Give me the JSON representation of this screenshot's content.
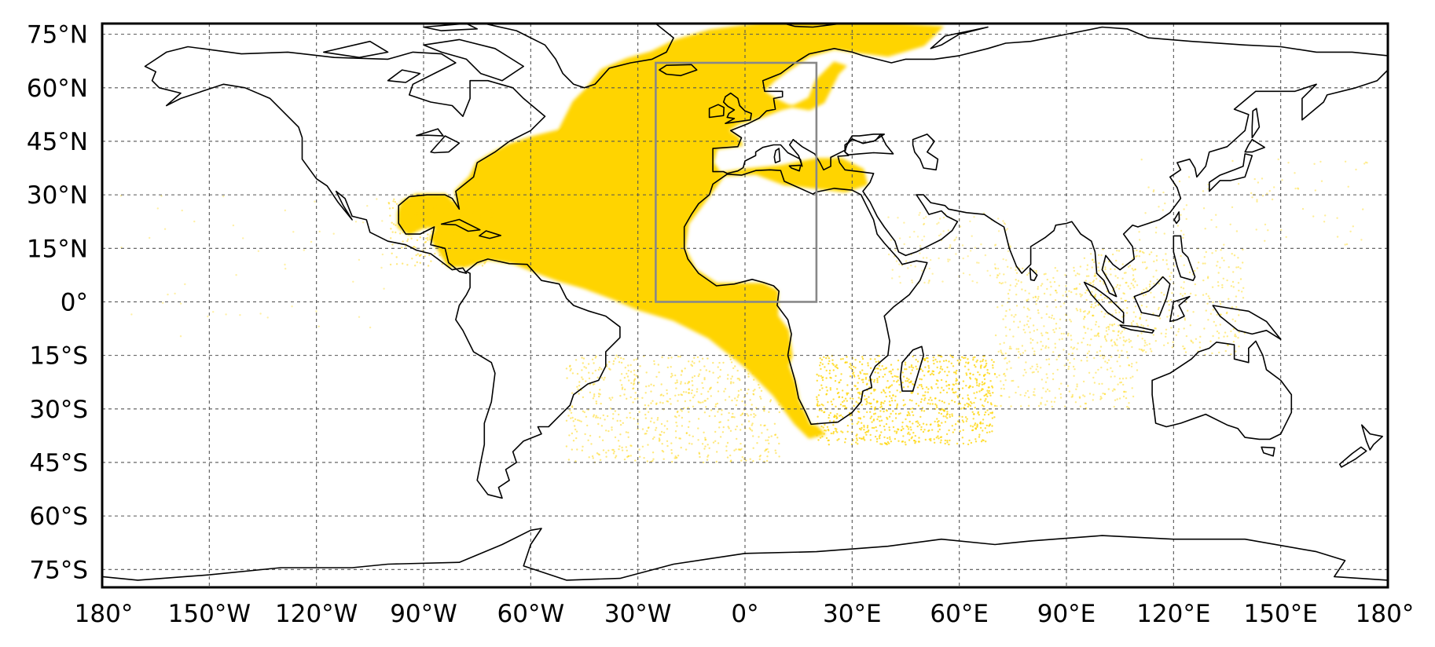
{
  "map": {
    "projection": "plate-carree",
    "extent": {
      "lon": [
        -180,
        180
      ],
      "lat": [
        -80,
        78
      ]
    },
    "grid": true,
    "colors": {
      "frame": "#000000",
      "coastline": "#000000",
      "gridline": "#555555",
      "density": "#FFD400",
      "region_box": "#888888"
    },
    "lat_ticks": [
      {
        "value": 75,
        "label": "75°N"
      },
      {
        "value": 60,
        "label": "60°N"
      },
      {
        "value": 45,
        "label": "45°N"
      },
      {
        "value": 30,
        "label": "30°N"
      },
      {
        "value": 15,
        "label": "15°N"
      },
      {
        "value": 0,
        "label": "0°"
      },
      {
        "value": -15,
        "label": "15°S"
      },
      {
        "value": -30,
        "label": "30°S"
      },
      {
        "value": -45,
        "label": "45°S"
      },
      {
        "value": -60,
        "label": "60°S"
      },
      {
        "value": -75,
        "label": "75°S"
      }
    ],
    "lon_ticks": [
      {
        "value": -180,
        "label": "180°"
      },
      {
        "value": -150,
        "label": "150°W"
      },
      {
        "value": -120,
        "label": "120°W"
      },
      {
        "value": -90,
        "label": "90°W"
      },
      {
        "value": -60,
        "label": "60°W"
      },
      {
        "value": -30,
        "label": "30°W"
      },
      {
        "value": 0,
        "label": "0°"
      },
      {
        "value": 30,
        "label": "30°E"
      },
      {
        "value": 60,
        "label": "60°E"
      },
      {
        "value": 90,
        "label": "90°E"
      },
      {
        "value": 120,
        "label": "120°E"
      },
      {
        "value": 150,
        "label": "150°E"
      },
      {
        "value": 180,
        "label": "180°"
      }
    ],
    "region_box": {
      "lon": [
        -25,
        20
      ],
      "lat": [
        0,
        67
      ]
    }
  }
}
